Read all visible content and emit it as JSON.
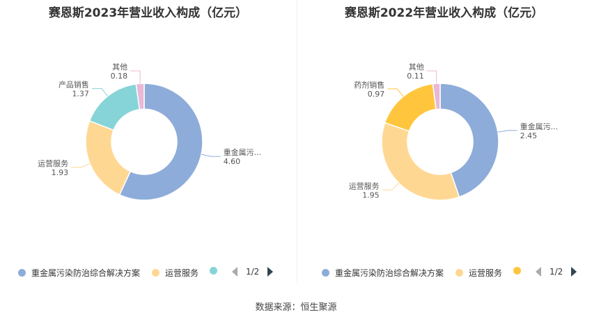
{
  "footer": {
    "source": "数据来源：恒生聚源"
  },
  "chart_data": [
    {
      "type": "pie",
      "title": "赛恩斯2023年营业收入构成（亿元）",
      "series": [
        {
          "name": "重金属污染防治综合解决方案",
          "label": "重金属污...",
          "value_text": "4.60",
          "value": 4.6,
          "color": "#8eacd9"
        },
        {
          "name": "运营服务",
          "label": "运营服务",
          "value_text": "1.93",
          "value": 1.93,
          "color": "#fed893"
        },
        {
          "name": "产品销售",
          "label": "产品销售",
          "value_text": "1.37",
          "value": 1.37,
          "color": "#86d4d8"
        },
        {
          "name": "其他",
          "label": "其他",
          "value_text": "0.18",
          "value": 0.18,
          "color": "#e8b8d6"
        }
      ],
      "legend": {
        "placement": "bottom",
        "visible_items": 3,
        "page": "1/2"
      }
    },
    {
      "type": "pie",
      "title": "赛恩斯2022年营业收入构成（亿元）",
      "series": [
        {
          "name": "重金属污染防治综合解决方案",
          "label": "重金属污...",
          "value_text": "2.45",
          "value": 2.45,
          "color": "#8eacd9"
        },
        {
          "name": "运营服务",
          "label": "运营服务",
          "value_text": "1.95",
          "value": 1.95,
          "color": "#fed893"
        },
        {
          "name": "药剂销售",
          "label": "药剂销售",
          "value_text": "0.97",
          "value": 0.97,
          "color": "#ffc63d"
        },
        {
          "name": "其他",
          "label": "其他",
          "value_text": "0.11",
          "value": 0.11,
          "color": "#e8b8d6"
        }
      ],
      "legend": {
        "placement": "bottom",
        "visible_items": 3,
        "page": "1/2"
      }
    }
  ]
}
